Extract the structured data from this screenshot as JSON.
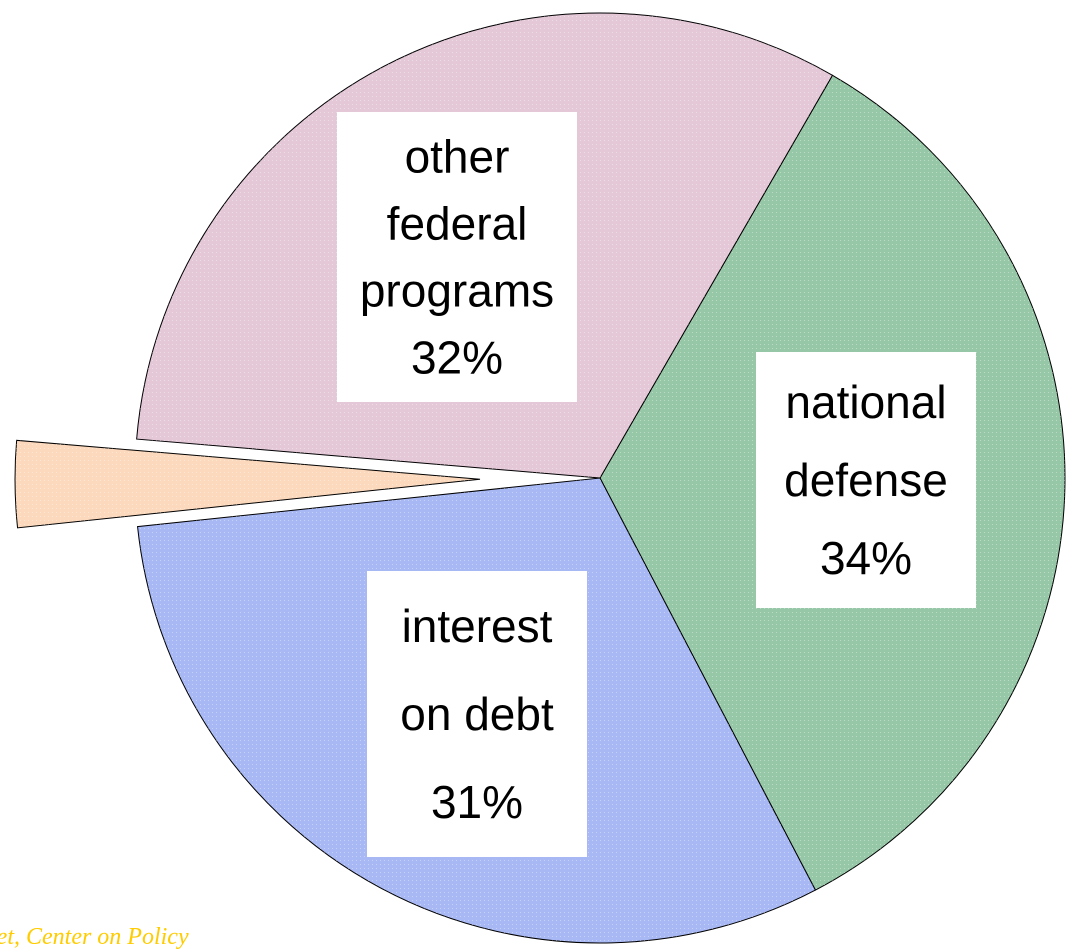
{
  "chart_data": {
    "type": "pie",
    "slices": [
      {
        "label": "national defense",
        "label_lines": [
          "national",
          "defense",
          "34%"
        ],
        "value": 34,
        "color": "#96c8a8"
      },
      {
        "label": "interest on debt",
        "label_lines": [
          "interest",
          "on debt",
          "31%"
        ],
        "value": 31,
        "color": "#a8b8f4"
      },
      {
        "label": "",
        "label_lines": [],
        "value": 3,
        "color": "#fcd8bc",
        "exploded": true
      },
      {
        "label": "other federal programs",
        "label_lines": [
          "other",
          "federal",
          "programs",
          "32%"
        ],
        "value": 32,
        "color": "#e4c8d8"
      }
    ],
    "start_angle_deg": -60,
    "legend": "none",
    "title": ""
  },
  "source": {
    "text": "...laet, Center on Policy"
  }
}
